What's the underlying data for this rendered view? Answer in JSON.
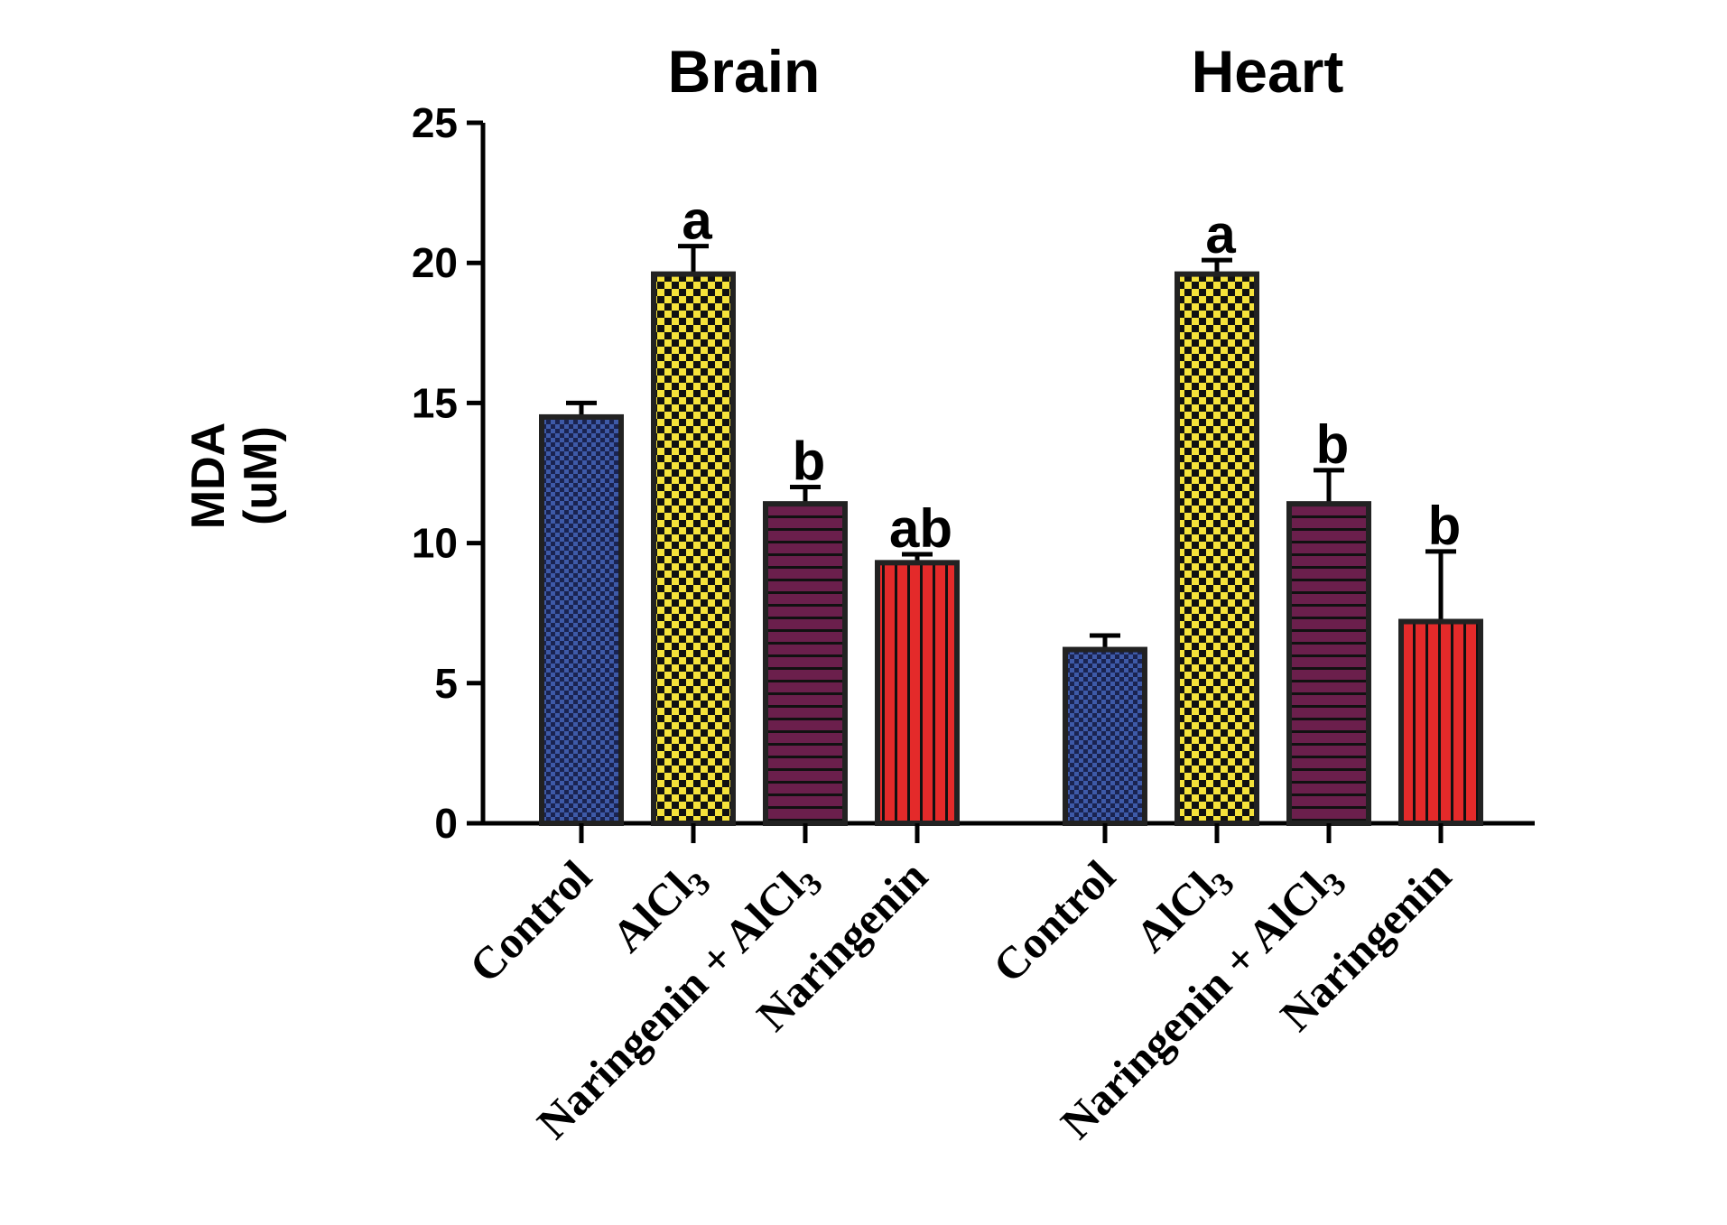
{
  "chart_data": {
    "type": "bar",
    "ylabel": "MDA",
    "ylabel_unit": "(uM)",
    "ylim": [
      0,
      25
    ],
    "yticks": [
      0,
      5,
      10,
      15,
      20,
      25
    ],
    "grid": false,
    "legend": "none",
    "groups": [
      {
        "title": "Brain",
        "categories": [
          "Control",
          "AlCl3",
          "Naringenin + AlCl3",
          "Naringenin"
        ],
        "values": [
          14.5,
          19.6,
          11.4,
          9.3
        ],
        "errors": [
          0.5,
          1.0,
          0.6,
          0.3
        ],
        "significance": [
          "",
          "a",
          "b",
          "ab"
        ]
      },
      {
        "title": "Heart",
        "categories": [
          "Control",
          "AlCl3",
          "Naringenin + AlCl3",
          "Naringenin"
        ],
        "values": [
          6.2,
          19.6,
          11.4,
          7.2
        ],
        "errors": [
          0.5,
          0.5,
          1.2,
          2.5
        ],
        "significance": [
          "",
          "a",
          "b",
          "b"
        ]
      }
    ],
    "bar_styles": [
      {
        "color": "#3e5aa8",
        "pattern": "fine-checker"
      },
      {
        "color": "#f5e23a",
        "pattern": "checker"
      },
      {
        "color": "#6b1f4c",
        "pattern": "horizontal-stripes"
      },
      {
        "color": "#e42a2a",
        "pattern": "vertical-stripes"
      }
    ]
  }
}
